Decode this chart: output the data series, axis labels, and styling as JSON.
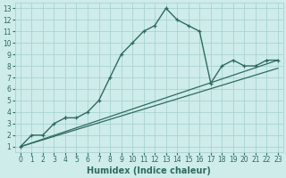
{
  "xlabel": "Humidex (Indice chaleur)",
  "bg_color": "#ceecea",
  "grid_color": "#a8d4d0",
  "line_color": "#2e6b5e",
  "xlim": [
    -0.5,
    23.5
  ],
  "ylim": [
    0.5,
    13.5
  ],
  "xticks": [
    0,
    1,
    2,
    3,
    4,
    5,
    6,
    7,
    8,
    9,
    10,
    11,
    12,
    13,
    14,
    15,
    16,
    17,
    18,
    19,
    20,
    21,
    22,
    23
  ],
  "yticks": [
    1,
    2,
    3,
    4,
    5,
    6,
    7,
    8,
    9,
    10,
    11,
    12,
    13
  ],
  "main_x": [
    0,
    1,
    2,
    3,
    4,
    4,
    5,
    6,
    7,
    8,
    9,
    10,
    11,
    12,
    13,
    14,
    15,
    16,
    17,
    18,
    19,
    20,
    21,
    22,
    23
  ],
  "main_y": [
    1,
    2,
    2,
    3,
    3.5,
    3.5,
    3.5,
    4.0,
    5.0,
    7,
    9.0,
    10,
    11,
    11.5,
    13,
    12,
    11.5,
    11,
    6.5,
    8.0,
    8.5,
    8.0,
    8.0,
    8.5,
    8.5
  ],
  "line2_x": [
    0,
    23
  ],
  "line2_y": [
    1,
    8.5
  ],
  "line3_x": [
    0,
    23
  ],
  "line3_y": [
    1,
    7.8
  ],
  "xlabel_fontsize": 7,
  "tick_fontsize": 5.5
}
